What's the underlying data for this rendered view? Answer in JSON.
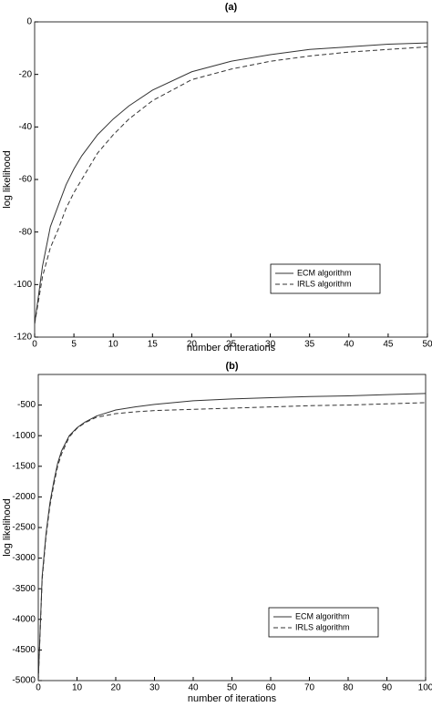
{
  "chart_data": [
    {
      "type": "line",
      "title": "(a)",
      "x_label": "number of iterations",
      "y_label": "log likelihood",
      "x": [
        0,
        1,
        2,
        3,
        4,
        5,
        6,
        8,
        10,
        12,
        15,
        20,
        25,
        30,
        35,
        40,
        45,
        50
      ],
      "series": [
        {
          "name": "ECM algorithm",
          "color": "#333333",
          "line_style": "solid",
          "values": [
            -115,
            -93,
            -78,
            -70,
            -62,
            -56,
            -51,
            -43,
            -37,
            -32,
            -26,
            -19,
            -15,
            -12.5,
            -10.5,
            -9.5,
            -8.5,
            -8
          ]
        },
        {
          "name": "IRLS algorithm",
          "color": "#333333",
          "line_style": "dashed",
          "values": [
            -115,
            -97,
            -86,
            -79,
            -71,
            -65,
            -60,
            -50,
            -43,
            -37,
            -30,
            -22,
            -18,
            -15,
            -13,
            -11.5,
            -10.5,
            -9.5
          ]
        }
      ],
      "xlim": [
        0,
        50
      ],
      "xticks": [
        0,
        5,
        10,
        15,
        20,
        25,
        30,
        35,
        40,
        45,
        50
      ],
      "ylim": [
        -120,
        0
      ],
      "yticks": [
        -120,
        -100,
        -80,
        -60,
        -40,
        -20,
        0
      ],
      "legend": "lower right"
    },
    {
      "type": "line",
      "title": "(b)",
      "x_label": "number of iterations",
      "y_label": "log likelihood",
      "x": [
        0,
        1,
        2,
        3,
        4,
        5,
        6,
        8,
        10,
        12,
        15,
        20,
        25,
        30,
        40,
        50,
        60,
        70,
        80,
        90,
        100
      ],
      "series": [
        {
          "name": "ECM algorithm",
          "color": "#333333",
          "line_style": "solid",
          "values": [
            -5000,
            -3300,
            -2600,
            -2100,
            -1750,
            -1450,
            -1250,
            -1000,
            -870,
            -780,
            -680,
            -580,
            -530,
            -490,
            -430,
            -400,
            -380,
            -360,
            -350,
            -330,
            -310
          ]
        },
        {
          "name": "IRLS algorithm",
          "color": "#333333",
          "line_style": "dashed",
          "values": [
            -5000,
            -3350,
            -2650,
            -2150,
            -1800,
            -1500,
            -1300,
            -1020,
            -880,
            -790,
            -700,
            -640,
            -610,
            -590,
            -570,
            -550,
            -530,
            -510,
            -500,
            -480,
            -460
          ]
        }
      ],
      "xlim": [
        0,
        100
      ],
      "xticks": [
        0,
        10,
        20,
        30,
        40,
        50,
        60,
        70,
        80,
        90,
        100
      ],
      "ylim": [
        -5000,
        0
      ],
      "yticks": [
        -5000,
        -4500,
        -4000,
        -3500,
        -3000,
        -2500,
        -2000,
        -1500,
        -1000,
        -500
      ],
      "legend": "lower right"
    }
  ]
}
